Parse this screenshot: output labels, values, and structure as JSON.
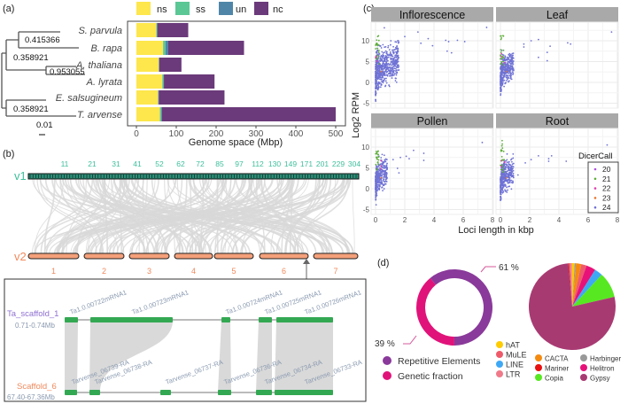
{
  "panel_labels": {
    "a": "(a)",
    "b": "(b)",
    "c": "(c)",
    "d": "(d)"
  },
  "tree": {
    "branch_labels": [
      "0.415366",
      "0.358921",
      "0.953055",
      "0.358921"
    ],
    "scale_label": "0.01"
  },
  "colors": {
    "ns": "#fde74c",
    "ss": "#5bc795",
    "un": "#4f86a8",
    "nc": "#6b3a7a",
    "v1": "#3dbf9a",
    "v2": "#f08a5d",
    "gene": "#33a852",
    "dicer20": "#b14fe0",
    "dicer21": "#5fae3a",
    "dicer22": "#e040b0",
    "dicer23": "#e8732a",
    "dicer24": "#6f72d4"
  },
  "chart_data": [
    {
      "type": "bar",
      "orientation": "horizontal-stacked",
      "categories": [
        "S. parvula",
        "B. rapa",
        "A. thaliana",
        "A. lyrata",
        "E. salsugineum",
        "T. arvense"
      ],
      "series": [
        {
          "name": "ns",
          "values": [
            50,
            67,
            56,
            65,
            54,
            59
          ]
        },
        {
          "name": "ss",
          "values": [
            1,
            6,
            1,
            3,
            1,
            3
          ]
        },
        {
          "name": "un",
          "values": [
            2,
            7,
            0,
            1,
            1,
            2
          ]
        },
        {
          "name": "nc",
          "values": [
            77,
            190,
            56,
            127,
            165,
            436
          ]
        }
      ],
      "xlabel": "Genome space (Mbp)",
      "xlim": [
        0,
        520
      ],
      "xticks": [
        "0",
        "100",
        "200",
        "300",
        "400",
        "500"
      ],
      "legend": "top"
    },
    {
      "type": "scatter",
      "facets": [
        "Inflorescence",
        "Leaf",
        "Pollen",
        "Root"
      ],
      "xlabel": "Loci length in kbp",
      "ylabel": "Log2 RPM",
      "xlim": [
        0,
        8
      ],
      "ylim": [
        -5,
        14
      ],
      "xticks": [
        "0",
        "2",
        "4",
        "6",
        "8"
      ],
      "yticks": [
        "-5",
        "0",
        "5",
        "10"
      ],
      "legend_title": "DicerCall",
      "legend": [
        "20",
        "21",
        "22",
        "23",
        "24"
      ],
      "outliers_24": [
        [
          [
            7.6,
            13.2
          ],
          [
            5.6,
            10.1
          ],
          [
            6.1,
            9.8
          ],
          [
            4.8,
            10.1
          ],
          [
            5.0,
            9.8
          ],
          [
            4.9,
            7.5
          ],
          [
            5.2,
            7.1
          ],
          [
            3.6,
            10.5
          ],
          [
            2.9,
            12.1
          ],
          [
            2.0,
            11.0
          ],
          [
            0.6,
            13.1
          ],
          [
            3.1,
            9.4
          ],
          [
            3.9,
            8.8
          ]
        ],
        [
          [
            7.6,
            12.1
          ],
          [
            4.6,
            9.5
          ],
          [
            4.8,
            9.2
          ],
          [
            3.4,
            8.7
          ],
          [
            3.2,
            7.2
          ],
          [
            3.2,
            5.2
          ],
          [
            2.6,
            10.3
          ],
          [
            1.6,
            9.2
          ],
          [
            1.6,
            8.5
          ],
          [
            2.1,
            10.0
          ],
          [
            2.6,
            6.0
          ]
        ],
        [
          [
            7.3,
            11.1
          ],
          [
            3.3,
            8.5
          ],
          [
            3.3,
            6.8
          ],
          [
            2.6,
            9.2
          ],
          [
            2.1,
            7.8
          ],
          [
            2.3,
            7.2
          ],
          [
            1.7,
            7.5
          ],
          [
            1.5,
            4.9
          ],
          [
            1.6,
            3.8
          ],
          [
            1.2,
            7.0
          ]
        ],
        [
          [
            7.3,
            10.5
          ],
          [
            4.5,
            6.6
          ],
          [
            3.5,
            7.9
          ],
          [
            3.3,
            6.6
          ],
          [
            3.3,
            7.2
          ],
          [
            2.6,
            7.9
          ],
          [
            2.1,
            7.0
          ],
          [
            1.7,
            6.2
          ],
          [
            1.2,
            3.3
          ]
        ]
      ],
      "cloud_24": {
        "n": 650,
        "x_max_kbp": 1.6,
        "y_center": 2.5,
        "y_spread": 3.0
      },
      "points_21_y_range": [
        4,
        13.5
      ]
    },
    {
      "type": "pie",
      "style": "donut",
      "labels": [
        "Repetitive Elements",
        "Genetic fraction"
      ],
      "values": [
        61,
        39
      ],
      "value_labels": [
        "61 %",
        "39 %"
      ],
      "colors": [
        "#8a3a9a",
        "#e0137a"
      ]
    },
    {
      "type": "pie",
      "labels": [
        "LTR",
        "hAT",
        "Harbinger",
        "CACTA",
        "MuLE",
        "Helitron",
        "LINE",
        "Copia",
        "Gypsy",
        "Mariner"
      ],
      "values": [
        1.0,
        1.0,
        0.5,
        2.0,
        2.0,
        3.5,
        3.0,
        9.5,
        77.2,
        0.3
      ],
      "colors": [
        "#f07a8a",
        "#ffcc00",
        "#999999",
        "#f58a10",
        "#ef5a6a",
        "#e8117a",
        "#3ea8f5",
        "#57e821",
        "#a83a72",
        "#e81010"
      ],
      "legend_columns": [
        [
          "hAT",
          "MuLE",
          "LINE",
          "LTR"
        ],
        [
          "CACTA",
          "Mariner",
          "Copia"
        ],
        [
          "Harbinger",
          "Helitron",
          "Gypsy"
        ]
      ]
    }
  ],
  "synteny": {
    "v1_label": "v1",
    "v2_label": "v2",
    "v1_scaffold_numbers": [
      "11",
      "21",
      "31",
      "41",
      "52",
      "62",
      "72",
      "85",
      "97",
      "112",
      "130",
      "149",
      "171",
      "201",
      "229",
      "304"
    ],
    "v2_chromosomes": [
      "1",
      "2",
      "3",
      "4",
      "5",
      "6",
      "7"
    ],
    "zoom": {
      "top_name": "Ta_scaffold_1",
      "top_range": "0.71-0.74Mb",
      "bottom_name": "Scaffold_6",
      "bottom_range": "67.40-67.36Mb",
      "top_genes": [
        "Ta1.0.00722mRNA1",
        "Ta1.0.00723mRNA1",
        "Ta1.0.00724mRNA1",
        "Ta1.0.00725mRNA1",
        "Ta1.0.00726mRNA1"
      ],
      "bottom_genes": [
        "Tarvense_06739-RA",
        "Tarvense_06738-RA",
        "Tarvense_06737-RA",
        "Tarvense_06736-RA",
        "Tarvense_06734-RA",
        "Tarvense_06733-RA"
      ]
    }
  }
}
